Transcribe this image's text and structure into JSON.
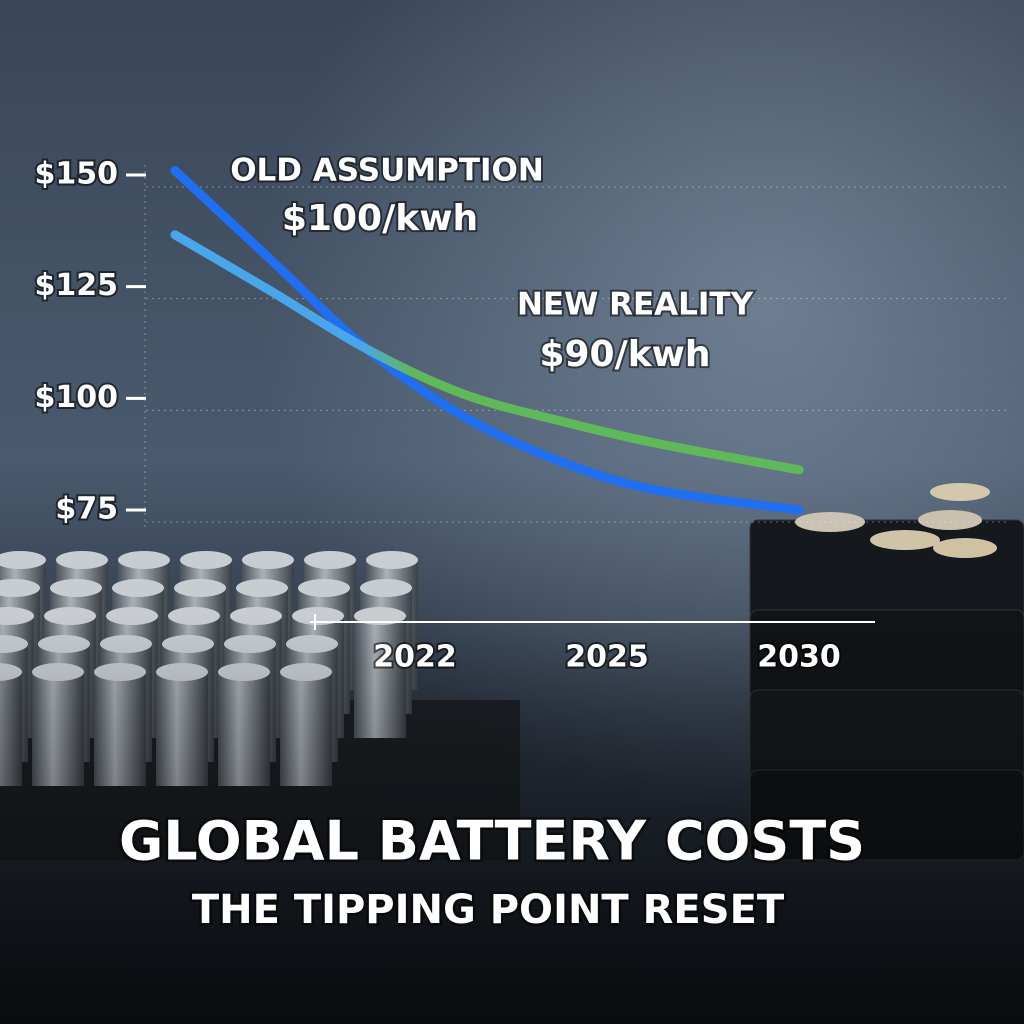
{
  "chart_data": {
    "type": "line",
    "title": "GLOBAL BATTERY COSTS",
    "subtitle": "THE TIPPING POINT RESET",
    "x": [
      2017,
      2019,
      2021,
      2023,
      2025,
      2027,
      2030
    ],
    "xlim": [
      2017,
      2030
    ],
    "xticks": [
      2022,
      2025,
      2030
    ],
    "ylim": [
      75,
      150
    ],
    "yticks": [
      {
        "value": 150,
        "label": "$150"
      },
      {
        "value": 125,
        "label": "$125"
      },
      {
        "value": 100,
        "label": "$100"
      },
      {
        "value": 75,
        "label": "$75"
      }
    ],
    "grid": true,
    "series": [
      {
        "name": "OLD ASSUMPTION",
        "annotation": "$100/kwh",
        "color": "#1f6ff0",
        "values": [
          151,
          131,
          111,
          96,
          86,
          79.5,
          75
        ]
      },
      {
        "name": "NEW REALITY",
        "annotation": "$90/kwh",
        "color": "#5fb85a",
        "start_color": "#4aa6ea",
        "values": [
          136.6,
          124,
          111,
          101,
          95,
          90,
          84
        ]
      }
    ]
  }
}
